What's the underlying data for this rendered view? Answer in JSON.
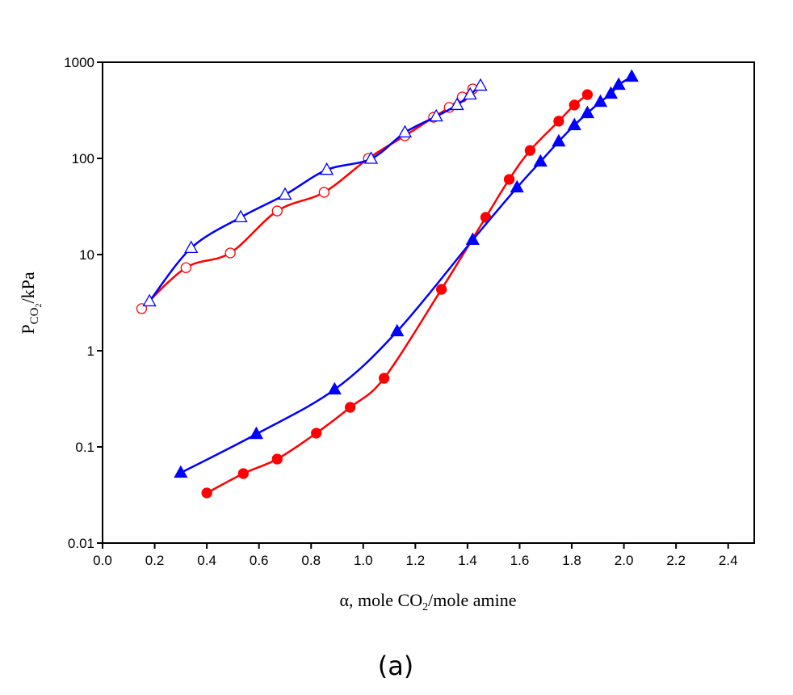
{
  "chart_data": {
    "type": "line",
    "caption": "(a)",
    "xlabel": [
      "α, mole CO",
      "2",
      "/mole amine"
    ],
    "ylabel": [
      "P",
      "CO",
      "2",
      "/kPa"
    ],
    "log_y": true,
    "xlim": [
      0,
      2.5
    ],
    "ylim": [
      0.01,
      1000
    ],
    "xticks": [
      {
        "value": 0,
        "label": "0.0"
      },
      0.2,
      0.4,
      0.6,
      0.8,
      {
        "value": 1,
        "label": "1.0"
      },
      1.2,
      1.4,
      1.6,
      1.8,
      {
        "value": 2,
        "label": "2.0"
      },
      2.2,
      2.4
    ],
    "yticks": [
      0.01,
      0.1,
      1,
      10,
      100,
      1000
    ],
    "series": [
      {
        "color": "#ff0000",
        "marker": "circle",
        "filled": false,
        "x": [
          0.15,
          0.32,
          0.49,
          0.67,
          0.85,
          1.02,
          1.16,
          1.27,
          1.33,
          1.38,
          1.42
        ],
        "values": [
          2.74,
          7.3,
          10.4,
          28.4,
          44.4,
          100,
          172,
          268,
          339,
          435,
          528
        ]
      },
      {
        "color": "#0000ff",
        "marker": "triangle",
        "filled": false,
        "x": [
          0.18,
          0.34,
          0.53,
          0.7,
          0.86,
          1.03,
          1.16,
          1.28,
          1.36,
          1.41,
          1.45
        ],
        "values": [
          3.26,
          11.7,
          24.4,
          41.9,
          76,
          99,
          186,
          273,
          359,
          461,
          570
        ]
      },
      {
        "color": "#ff0000",
        "marker": "circle",
        "filled": true,
        "x": [
          0.4,
          0.54,
          0.67,
          0.82,
          0.95,
          1.08,
          1.3,
          1.47,
          1.56,
          1.64,
          1.75,
          1.81,
          1.86
        ],
        "values": [
          0.0332,
          0.0528,
          0.0748,
          0.139,
          0.258,
          0.518,
          4.35,
          24.4,
          60.5,
          121,
          244,
          359,
          461
        ]
      },
      {
        "color": "#0000ff",
        "marker": "triangle",
        "filled": true,
        "x": [
          0.3,
          0.59,
          0.89,
          1.13,
          1.42,
          1.59,
          1.68,
          1.75,
          1.81,
          1.86,
          1.91,
          1.95,
          1.98,
          2.03
        ],
        "values": [
          0.0538,
          0.136,
          0.395,
          1.59,
          14.2,
          49.8,
          92.5,
          150,
          221,
          296,
          387,
          470,
          582,
          706
        ]
      }
    ]
  }
}
